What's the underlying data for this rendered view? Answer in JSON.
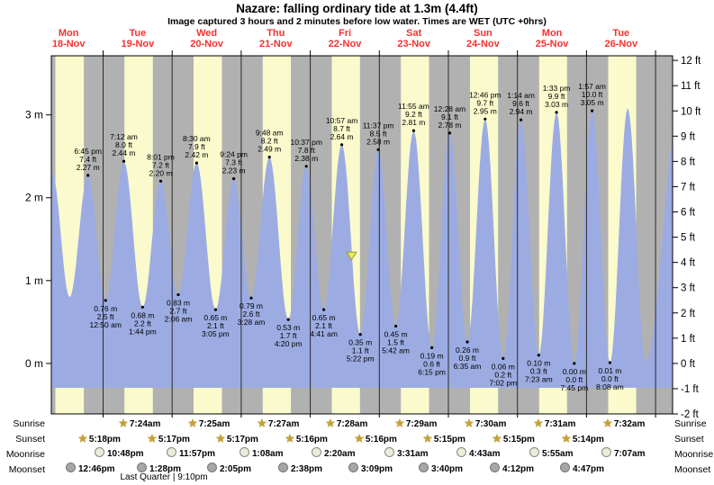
{
  "title": "Nazare: falling  ordinary tide at 1.3m (4.4ft)",
  "subtitle": "Image captured 3 hours and 2 minutes before low water. Times are WET (UTC +0hrs)",
  "colors": {
    "day_bg": "#FAFACD",
    "night_bg": "#B1B1B1",
    "tide_fill": "#9CACE2",
    "frame": "#000000",
    "grid_line": "#2a2a2a",
    "day_label_red": "#F83030",
    "marker_fill": "#ECEC58",
    "marker_stroke": "#9A9A30"
  },
  "chart_data": {
    "type": "area",
    "title": "Tide height over time",
    "ylabel_left": "m",
    "ylabel_right": "ft",
    "y_left_ticks": [
      0,
      1,
      2,
      3
    ],
    "y_right_min": -2,
    "y_right_max": 12,
    "days": [
      {
        "name": "Mon",
        "date": "18-Nov"
      },
      {
        "name": "Tue",
        "date": "19-Nov"
      },
      {
        "name": "Wed",
        "date": "20-Nov"
      },
      {
        "name": "Thu",
        "date": "21-Nov"
      },
      {
        "name": "Fri",
        "date": "22-Nov"
      },
      {
        "name": "Sat",
        "date": "23-Nov"
      },
      {
        "name": "Sun",
        "date": "24-Nov"
      },
      {
        "name": "Mon",
        "date": "25-Nov"
      },
      {
        "name": "Tue",
        "date": "26-Nov"
      }
    ],
    "extremes": [
      {
        "type": "high",
        "t": 0.262,
        "m": "2.30",
        "show": false
      },
      {
        "type": "low",
        "t": 0.515,
        "m": "0.80",
        "show": false
      },
      {
        "type": "high",
        "t": 0.781,
        "time": "6:45 pm",
        "ft": "7.4",
        "m": "2.27",
        "show": true
      },
      {
        "type": "low",
        "t": 1.035,
        "time": "12:50 am",
        "ft": "2.5",
        "m": "0.76",
        "show": true
      },
      {
        "type": "high",
        "t": 1.3,
        "time": "7:12 am",
        "ft": "8.0",
        "m": "2.44",
        "show": true
      },
      {
        "type": "low",
        "t": 1.572,
        "time": "1:44 pm",
        "ft": "2.2",
        "m": "0.68",
        "show": true
      },
      {
        "type": "high",
        "t": 1.834,
        "time": "8:01 pm",
        "ft": "7.2",
        "m": "2.20",
        "show": true
      },
      {
        "type": "low",
        "t": 2.088,
        "time": "2:06 am",
        "ft": "2.7",
        "m": "0.83",
        "show": true
      },
      {
        "type": "high",
        "t": 2.354,
        "time": "8:30 am",
        "ft": "7.9",
        "m": "2.42",
        "show": true
      },
      {
        "type": "low",
        "t": 2.628,
        "time": "3:05 pm",
        "ft": "2.1",
        "m": "0.65",
        "show": true
      },
      {
        "type": "high",
        "t": 2.892,
        "time": "9:24 pm",
        "ft": "7.3",
        "m": "2.23",
        "show": true
      },
      {
        "type": "low",
        "t": 3.144,
        "time": "3:28 am",
        "ft": "2.6",
        "m": "0.79",
        "show": true
      },
      {
        "type": "high",
        "t": 3.408,
        "time": "9:48 am",
        "ft": "8.2",
        "m": "2.49",
        "show": true
      },
      {
        "type": "low",
        "t": 3.681,
        "time": "4:20 pm",
        "ft": "1.7",
        "m": "0.53",
        "show": true
      },
      {
        "type": "high",
        "t": 3.942,
        "time": "10:37 pm",
        "ft": "7.8",
        "m": "2.38",
        "show": true
      },
      {
        "type": "low",
        "t": 4.195,
        "time": "4:41 am",
        "ft": "2.1",
        "m": "0.65",
        "show": true
      },
      {
        "type": "high",
        "t": 4.456,
        "time": "10:57 am",
        "ft": "8.7",
        "m": "2.64",
        "show": true
      },
      {
        "type": "low",
        "t": 4.724,
        "time": "5:22 pm",
        "ft": "1.1",
        "m": "0.35",
        "show": true
      },
      {
        "type": "high",
        "t": 4.984,
        "time": "11:37 pm",
        "ft": "8.5",
        "m": "2.58",
        "show": true
      },
      {
        "type": "low",
        "t": 5.238,
        "time": "5:42 am",
        "ft": "1.5",
        "m": "0.45",
        "show": true
      },
      {
        "type": "high",
        "t": 5.497,
        "time": "11:55 am",
        "ft": "9.2",
        "m": "2.81",
        "show": true
      },
      {
        "type": "low",
        "t": 5.76,
        "time": "6:15 pm",
        "ft": "0.6",
        "m": "0.19",
        "show": true
      },
      {
        "type": "high",
        "t": 6.019,
        "time": "12:28 am",
        "ft": "9.1",
        "m": "2.78",
        "show": true
      },
      {
        "type": "low",
        "t": 6.274,
        "time": "6:35 am",
        "ft": "0.9",
        "m": "0.26",
        "show": true
      },
      {
        "type": "high",
        "t": 6.532,
        "time": "12:46 pm",
        "ft": "9.7",
        "m": "2.95",
        "show": true
      },
      {
        "type": "low",
        "t": 6.793,
        "time": "7:02 pm",
        "ft": "0.2",
        "m": "0.06",
        "show": true
      },
      {
        "type": "high",
        "t": 7.051,
        "time": "1:14 am",
        "ft": "9.6",
        "m": "2.94",
        "show": true
      },
      {
        "type": "low",
        "t": 7.308,
        "time": "7:23 am",
        "ft": "0.3",
        "m": "0.10",
        "show": true
      },
      {
        "type": "high",
        "t": 7.565,
        "time": "1:33 pm",
        "ft": "9.9",
        "m": "3.03",
        "show": true
      },
      {
        "type": "low",
        "t": 7.823,
        "time": "7:45 pm",
        "ft": "0.0",
        "m": "0.00",
        "show": true
      },
      {
        "type": "high",
        "t": 8.081,
        "time": "1:57 am",
        "ft": "10.0",
        "m": "3.05",
        "show": true
      },
      {
        "type": "low",
        "t": 8.339,
        "time": "8:08 am",
        "ft": "0.0",
        "m": "0.01",
        "show": true
      },
      {
        "type": "high",
        "t": 8.597,
        "m": "3.08",
        "show": false
      },
      {
        "type": "low",
        "t": 8.854,
        "m": "0.02",
        "show": false
      },
      {
        "type": "high",
        "t": 9.355,
        "m": "3.10",
        "show": false
      }
    ],
    "current_level_marker": {
      "t": 4.597,
      "m": 1.3
    }
  },
  "astro": {
    "rows": [
      {
        "id": "sunrise",
        "label": "Sunrise",
        "icon": "sun",
        "days": [
          1,
          2,
          3,
          4,
          5,
          6,
          7,
          8
        ],
        "times": [
          "7:24am",
          "7:25am",
          "7:27am",
          "7:28am",
          "7:29am",
          "7:30am",
          "7:31am",
          "7:32am"
        ]
      },
      {
        "id": "sunset",
        "label": "Sunset",
        "icon": "sun",
        "days": [
          0,
          1,
          2,
          3,
          4,
          5,
          6,
          7
        ],
        "times": [
          "5:18pm",
          "5:17pm",
          "5:17pm",
          "5:16pm",
          "5:16pm",
          "5:15pm",
          "5:15pm",
          "5:14pm"
        ]
      },
      {
        "id": "moonrise",
        "label": "Moonrise",
        "icon": "moon-light",
        "days": [
          0,
          1,
          3,
          4,
          5,
          6,
          7,
          8
        ],
        "times": [
          "10:48pm",
          "11:57pm",
          "1:08am",
          "2:20am",
          "3:31am",
          "4:43am",
          "5:55am",
          "7:07am"
        ]
      },
      {
        "id": "moonset",
        "label": "Moonset",
        "icon": "moon-dark",
        "days": [
          0,
          1,
          2,
          3,
          4,
          5,
          6,
          7
        ],
        "times": [
          "12:46pm",
          "1:28pm",
          "2:05pm",
          "2:38pm",
          "3:09pm",
          "3:40pm",
          "4:12pm",
          "4:47pm"
        ]
      }
    ],
    "moon_phase": "Last Quarter | 9:10pm"
  }
}
